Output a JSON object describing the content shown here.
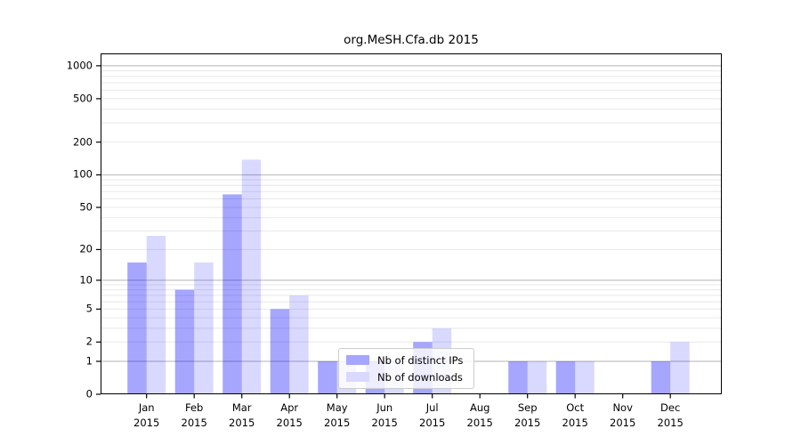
{
  "title": "org.MeSH.Cfa.db 2015",
  "chart_data": {
    "type": "bar",
    "title": "org.MeSH.Cfa.db 2015",
    "categories": [
      "Jan 2015",
      "Feb 2015",
      "Mar 2015",
      "Apr 2015",
      "May 2015",
      "Jun 2015",
      "Jul 2015",
      "Aug 2015",
      "Sep 2015",
      "Oct 2015",
      "Nov 2015",
      "Dec 2015"
    ],
    "month_line1": [
      "Jan",
      "Feb",
      "Mar",
      "Apr",
      "May",
      "Jun",
      "Jul",
      "Aug",
      "Sep",
      "Oct",
      "Nov",
      "Dec"
    ],
    "month_line2": "2015",
    "series": [
      {
        "name": "Nb of distinct IPs",
        "color": "rgba(0,0,255,0.35)",
        "legend_color": "#a6a6ff",
        "values": [
          15,
          8,
          66,
          5,
          1,
          1,
          2,
          0,
          1,
          1,
          0,
          1
        ]
      },
      {
        "name": "Nb of downloads",
        "color": "rgba(0,0,255,0.15)",
        "legend_color": "#d9d9ff",
        "values": [
          27,
          15,
          138,
          7,
          1,
          1,
          3,
          0,
          1,
          1,
          0,
          2
        ]
      }
    ],
    "yscale": "log1p",
    "y_tick_values": [
      0,
      1,
      2,
      5,
      10,
      20,
      50,
      100,
      200,
      500,
      1000
    ],
    "ylim": [
      0,
      1300
    ],
    "grid": "horizontal major+minor",
    "legend_position": "inside-bottom-center",
    "colors": {
      "grid_major": "#c2c2c2",
      "grid_minor": "#e8e8e8",
      "axis": "#000000",
      "background": "#ffffff"
    }
  }
}
